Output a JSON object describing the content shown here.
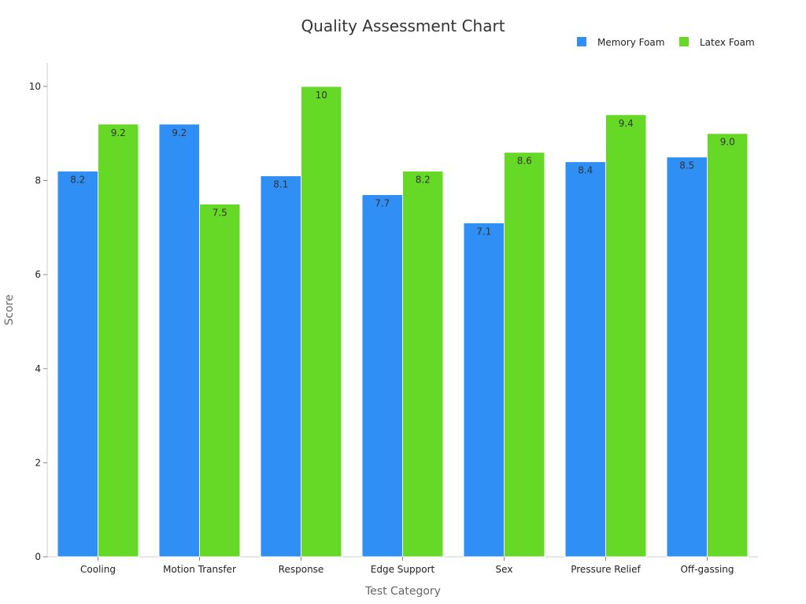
{
  "chart_data": {
    "type": "bar",
    "title": "Quality Assessment Chart",
    "xlabel": "Test Category",
    "ylabel": "Score",
    "ylim": [
      0,
      10.5
    ],
    "yticks": [
      0,
      2,
      4,
      6,
      8,
      10
    ],
    "categories": [
      "Cooling",
      "Motion Transfer",
      "Response",
      "Edge Support",
      "Sex",
      "Pressure Relief",
      "Off-gassing"
    ],
    "series": [
      {
        "name": "Memory Foam",
        "color": "#2f8ff5",
        "values": [
          8.2,
          9.2,
          8.1,
          7.7,
          7.1,
          8.4,
          8.5
        ],
        "labels": [
          "8.2",
          "9.2",
          "8.1",
          "7.7",
          "7.1",
          "8.4",
          "8.5"
        ]
      },
      {
        "name": "Latex Foam",
        "color": "#66d927",
        "values": [
          9.2,
          7.5,
          10,
          8.2,
          8.6,
          9.4,
          9.0
        ],
        "labels": [
          "9.2",
          "7.5",
          "10",
          "8.2",
          "8.6",
          "9.4",
          "9.0"
        ]
      }
    ],
    "legend_position": "top-right",
    "grid": false
  }
}
